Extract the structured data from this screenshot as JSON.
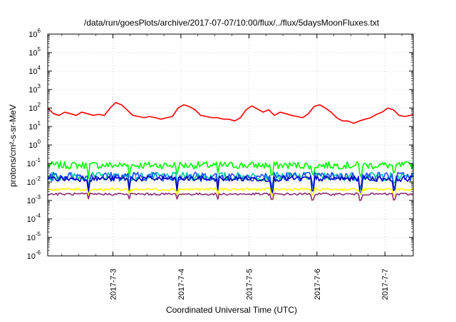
{
  "chart_data": {
    "type": "line",
    "title": "/data/run/goesPlots/archive/2017-07-07/10:00/flux/../flux/5daysMoonFluxes.txt",
    "xlabel": "Coordinated Universal Time (UTC)",
    "ylabel": "protons/cm²-s-sr-MeV",
    "y_scale": "log",
    "ylim": [
      1e-06,
      1000000
    ],
    "xlim": [
      "2017-07-02T01:00",
      "2017-07-07T10:00"
    ],
    "grid": true,
    "legend": "none",
    "x_ticks": [
      {
        "label": "2017-7-3",
        "t": "2017-07-03T00:00"
      },
      {
        "label": "2017-7-4",
        "t": "2017-07-04T00:00"
      },
      {
        "label": "2017-7-5",
        "t": "2017-07-05T00:00"
      },
      {
        "label": "2017-7-6",
        "t": "2017-07-06T00:00"
      },
      {
        "label": "2017-7-7",
        "t": "2017-07-07T00:00"
      }
    ],
    "y_ticks": [
      {
        "base": "10",
        "exp": "-6",
        "value": 1e-06
      },
      {
        "base": "10",
        "exp": "-5",
        "value": 1e-05
      },
      {
        "base": "10",
        "exp": "-4",
        "value": 0.0001
      },
      {
        "base": "10",
        "exp": "-3",
        "value": 0.001
      },
      {
        "base": "10",
        "exp": "-2",
        "value": 0.01
      },
      {
        "base": "10",
        "exp": "-1",
        "value": 0.1
      },
      {
        "base": "10",
        "exp": "0",
        "value": 1
      },
      {
        "base": "10",
        "exp": "1",
        "value": 10
      },
      {
        "base": "10",
        "exp": "2",
        "value": 100
      },
      {
        "base": "10",
        "exp": "3",
        "value": 1000
      },
      {
        "base": "10",
        "exp": "4",
        "value": 10000
      },
      {
        "base": "10",
        "exp": "5",
        "value": 100000
      },
      {
        "base": "10",
        "exp": "6",
        "value": 1000000
      }
    ],
    "series": [
      {
        "color": "#ff0000",
        "points": [
          [
            "2017-07-02T01:00",
            100
          ],
          [
            "2017-07-02T03:00",
            50
          ],
          [
            "2017-07-02T05:00",
            40
          ],
          [
            "2017-07-02T07:00",
            60
          ],
          [
            "2017-07-02T09:00",
            50
          ],
          [
            "2017-07-02T11:00",
            40
          ],
          [
            "2017-07-02T13:00",
            60
          ],
          [
            "2017-07-02T15:00",
            50
          ],
          [
            "2017-07-02T17:00",
            40
          ],
          [
            "2017-07-02T19:00",
            45
          ],
          [
            "2017-07-02T21:00",
            40
          ],
          [
            "2017-07-02T23:00",
            100
          ],
          [
            "2017-07-03T01:00",
            200
          ],
          [
            "2017-07-03T03:00",
            150
          ],
          [
            "2017-07-03T05:00",
            80
          ],
          [
            "2017-07-03T07:00",
            40
          ],
          [
            "2017-07-03T09:00",
            35
          ],
          [
            "2017-07-03T11:00",
            30
          ],
          [
            "2017-07-03T13:00",
            35
          ],
          [
            "2017-07-03T15:00",
            30
          ],
          [
            "2017-07-03T17:00",
            25
          ],
          [
            "2017-07-03T19:00",
            30
          ],
          [
            "2017-07-03T21:00",
            35
          ],
          [
            "2017-07-03T23:00",
            100
          ],
          [
            "2017-07-04T01:00",
            150
          ],
          [
            "2017-07-04T03:00",
            120
          ],
          [
            "2017-07-04T05:00",
            80
          ],
          [
            "2017-07-04T07:00",
            40
          ],
          [
            "2017-07-04T09:00",
            35
          ],
          [
            "2017-07-04T11:00",
            30
          ],
          [
            "2017-07-04T13:00",
            30
          ],
          [
            "2017-07-04T15:00",
            25
          ],
          [
            "2017-07-04T17:00",
            25
          ],
          [
            "2017-07-04T19:00",
            20
          ],
          [
            "2017-07-04T21:00",
            30
          ],
          [
            "2017-07-04T23:00",
            80
          ],
          [
            "2017-07-05T01:00",
            130
          ],
          [
            "2017-07-05T03:00",
            90
          ],
          [
            "2017-07-05T05:00",
            60
          ],
          [
            "2017-07-05T07:00",
            80
          ],
          [
            "2017-07-05T09:00",
            40
          ],
          [
            "2017-07-05T11:00",
            60
          ],
          [
            "2017-07-05T13:00",
            50
          ],
          [
            "2017-07-05T15:00",
            40
          ],
          [
            "2017-07-05T17:00",
            35
          ],
          [
            "2017-07-05T19:00",
            30
          ],
          [
            "2017-07-05T21:00",
            50
          ],
          [
            "2017-07-05T23:00",
            120
          ],
          [
            "2017-07-06T01:00",
            150
          ],
          [
            "2017-07-06T03:00",
            100
          ],
          [
            "2017-07-06T05:00",
            60
          ],
          [
            "2017-07-06T07:00",
            30
          ],
          [
            "2017-07-06T09:00",
            20
          ],
          [
            "2017-07-06T11:00",
            20
          ],
          [
            "2017-07-06T13:00",
            15
          ],
          [
            "2017-07-06T15:00",
            20
          ],
          [
            "2017-07-06T17:00",
            25
          ],
          [
            "2017-07-06T19:00",
            30
          ],
          [
            "2017-07-06T21:00",
            45
          ],
          [
            "2017-07-06T23:00",
            60
          ],
          [
            "2017-07-07T01:00",
            100
          ],
          [
            "2017-07-07T03:00",
            80
          ],
          [
            "2017-07-07T05:00",
            40
          ],
          [
            "2017-07-07T07:00",
            35
          ],
          [
            "2017-07-07T09:00",
            40
          ],
          [
            "2017-07-07T10:00",
            45
          ]
        ]
      },
      {
        "color": "#00ff00",
        "base": 0.08,
        "noise": 0.4,
        "dips": 0.3
      },
      {
        "color": "#00c8a0",
        "base": 0.02,
        "noise": 0.45,
        "dips": 0.3
      },
      {
        "color": "#1e50ff",
        "base": 0.02,
        "noise": 0.5,
        "dips": 0.3
      },
      {
        "color": "#0000b4",
        "base": 0.015,
        "noise": 0.3,
        "dips": 0.2
      },
      {
        "color": "#ffff00",
        "base": 0.004,
        "noise": 0.15,
        "dips": 0.5
      },
      {
        "color": "#8c2d78",
        "base": 0.0022,
        "noise": 0.12,
        "dips": 0.5
      }
    ]
  }
}
